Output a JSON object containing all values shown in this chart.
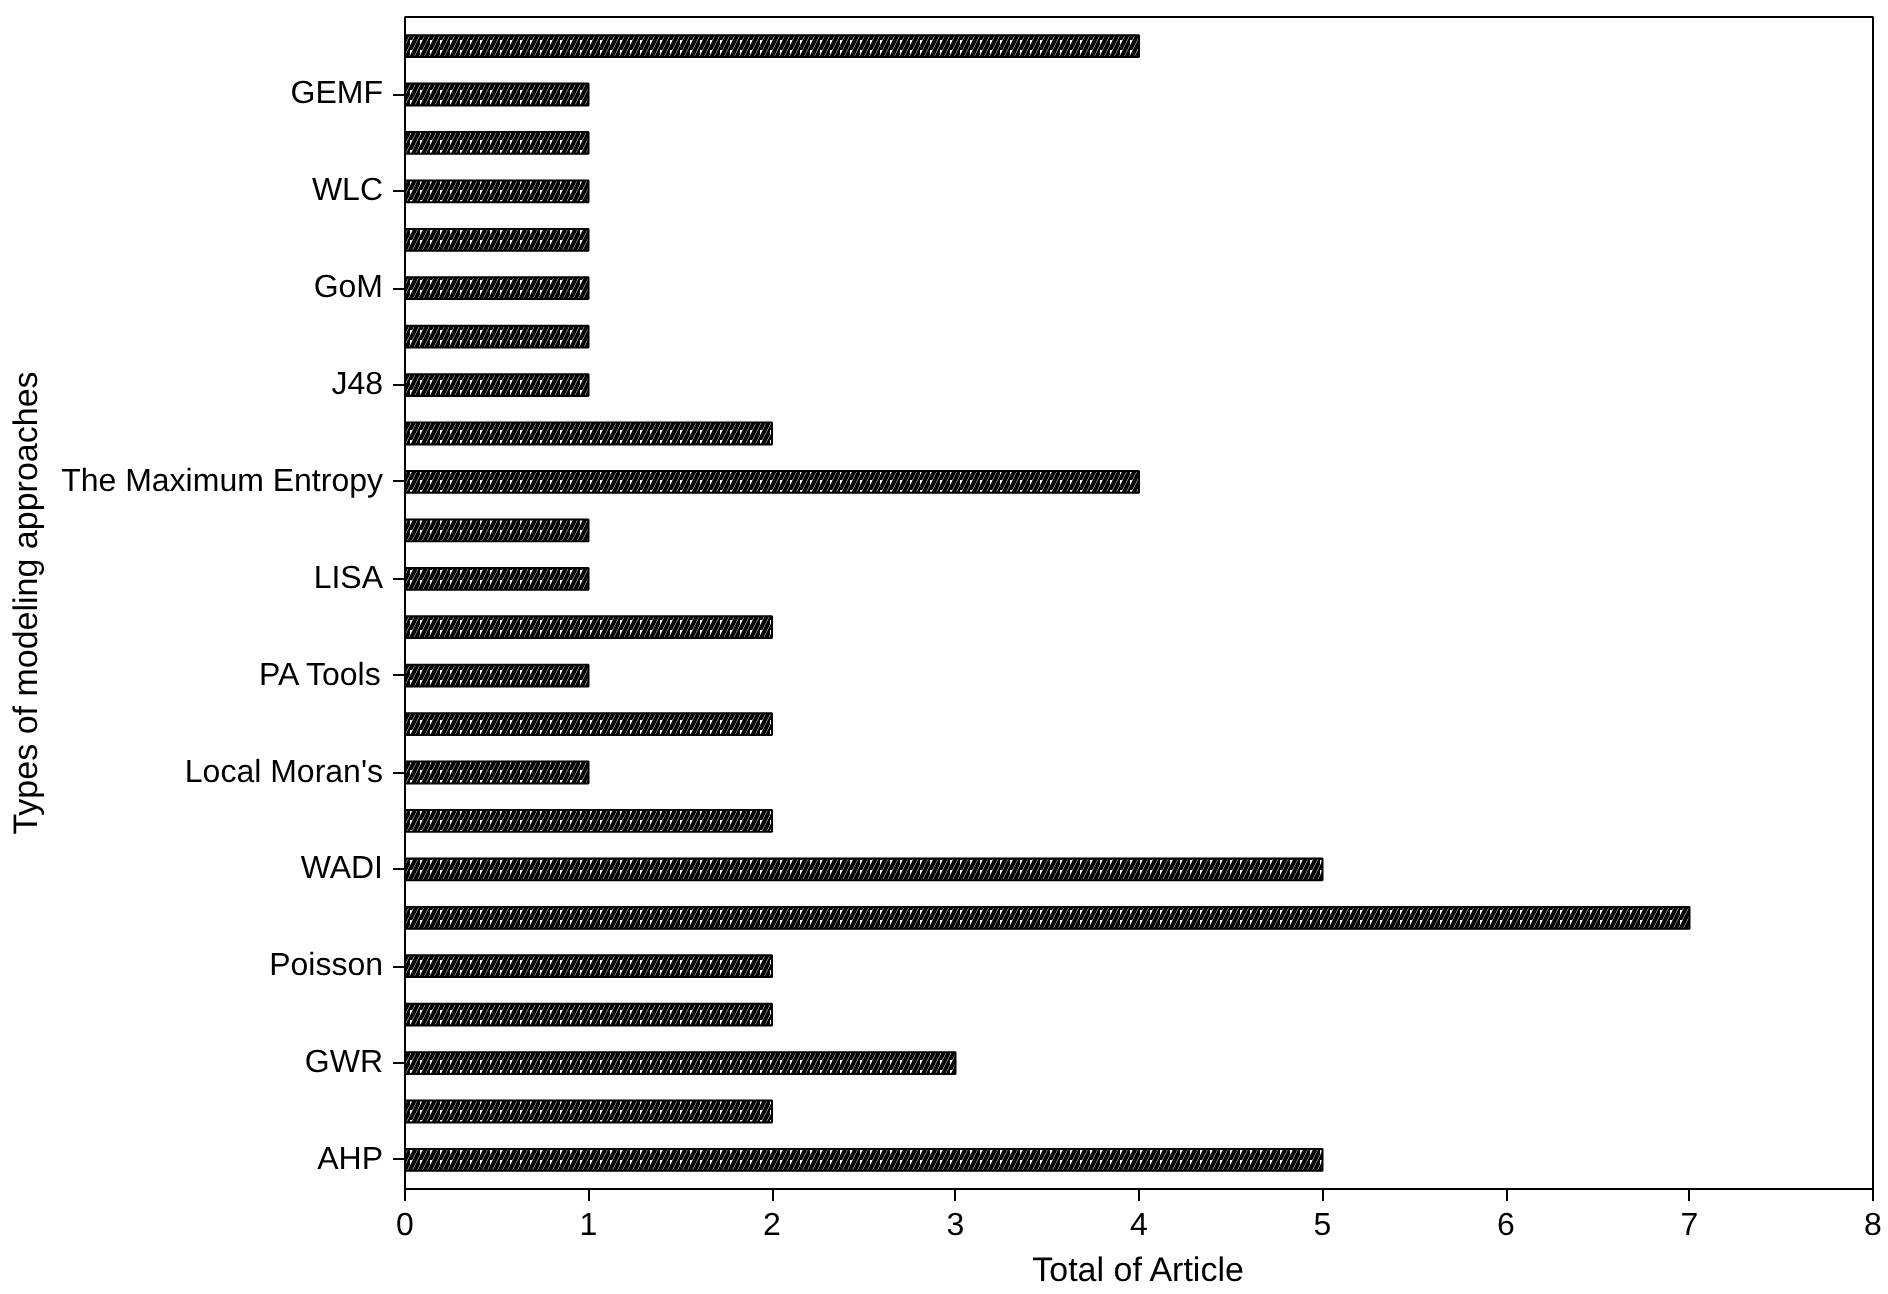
{
  "chart_data": {
    "type": "bar",
    "orientation": "horizontal",
    "xlabel": "Total of Article",
    "ylabel": "Types of modeling approaches",
    "categories": [
      null,
      "GEMF",
      null,
      "WLC",
      null,
      "GoM",
      null,
      "J48",
      null,
      "The Maximum Entropy",
      null,
      "LISA",
      null,
      "PA Tools",
      null,
      "Local Moran's",
      null,
      "WADI",
      null,
      "Poisson",
      null,
      "GWR",
      null,
      "AHP"
    ],
    "values": [
      4,
      1,
      1,
      1,
      1,
      1,
      1,
      1,
      2,
      4,
      1,
      1,
      2,
      1,
      2,
      1,
      2,
      5,
      7,
      2,
      2,
      3,
      2,
      5
    ],
    "color": "#000000",
    "xlim": [
      0,
      8
    ],
    "xticks": [
      0,
      1,
      2,
      3,
      4,
      5,
      6,
      7,
      8
    ],
    "grid": false
  }
}
